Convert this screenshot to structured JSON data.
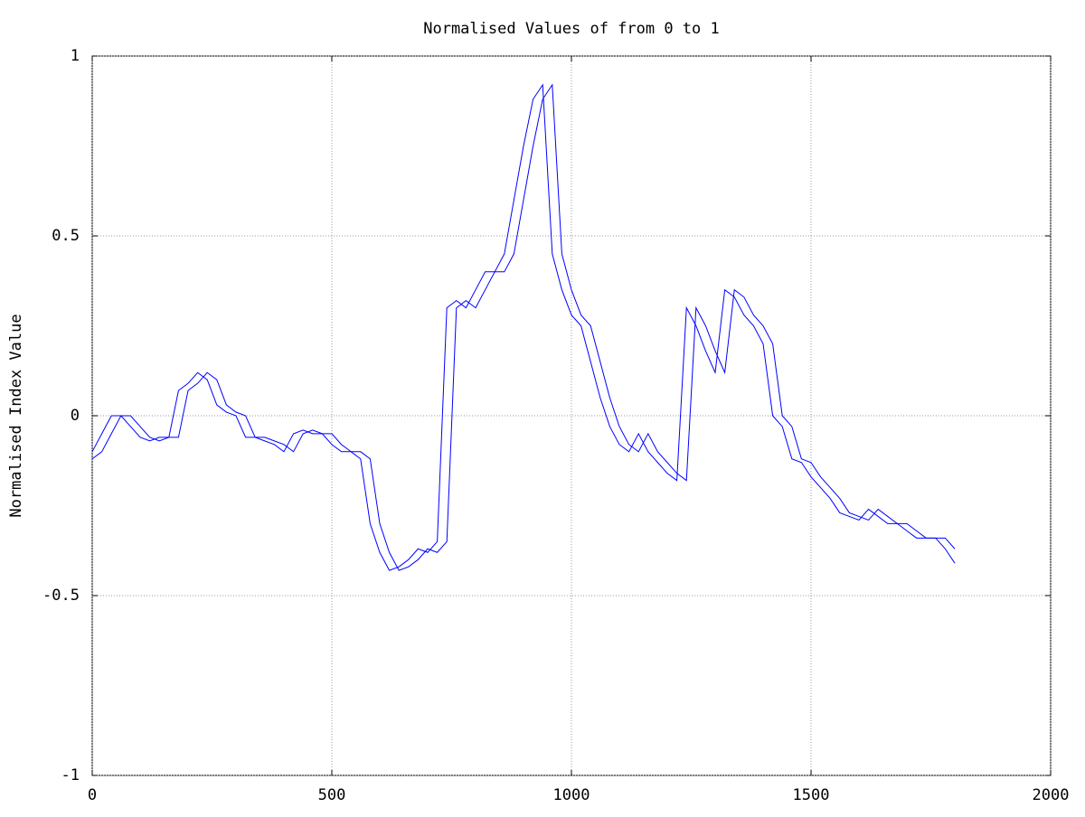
{
  "chart_data": {
    "type": "line",
    "title": "Normalised Values of from 0 to 1",
    "y_label": "Normalised Index Value",
    "x": [
      0,
      20,
      40,
      60,
      80,
      100,
      120,
      140,
      160,
      180,
      200,
      220,
      240,
      260,
      280,
      300,
      320,
      340,
      360,
      380,
      400,
      420,
      440,
      460,
      480,
      500,
      520,
      540,
      560,
      580,
      600,
      620,
      640,
      660,
      680,
      700,
      720,
      740,
      760,
      780,
      800,
      820,
      840,
      860,
      880,
      900,
      920,
      940,
      960,
      980,
      1000,
      1020,
      1040,
      1060,
      1080,
      1100,
      1120,
      1140,
      1160,
      1180,
      1200,
      1220,
      1240,
      1260,
      1280,
      1300,
      1320,
      1340,
      1360,
      1380,
      1400,
      1420,
      1440,
      1460,
      1480,
      1500,
      1520,
      1540,
      1560,
      1580,
      1600,
      1620,
      1640,
      1660,
      1680,
      1700,
      1720,
      1740,
      1760,
      1780,
      1800
    ],
    "series": [
      {
        "color": "#0000ff",
        "values": [
          -0.1,
          -0.05,
          0.0,
          0.0,
          -0.03,
          -0.06,
          -0.07,
          -0.06,
          -0.06,
          0.07,
          0.09,
          0.12,
          0.1,
          0.03,
          0.01,
          0.0,
          -0.06,
          -0.06,
          -0.07,
          -0.08,
          -0.1,
          -0.05,
          -0.04,
          -0.05,
          -0.05,
          -0.08,
          -0.1,
          -0.1,
          -0.12,
          -0.3,
          -0.38,
          -0.43,
          -0.42,
          -0.4,
          -0.37,
          -0.38,
          -0.35,
          0.3,
          0.32,
          0.3,
          0.35,
          0.4,
          0.4,
          0.45,
          0.6,
          0.75,
          0.88,
          0.92,
          0.45,
          0.35,
          0.28,
          0.25,
          0.15,
          0.05,
          -0.03,
          -0.08,
          -0.1,
          -0.05,
          -0.1,
          -0.13,
          -0.16,
          -0.18,
          0.3,
          0.25,
          0.18,
          0.12,
          0.35,
          0.33,
          0.28,
          0.25,
          0.2,
          0.0,
          -0.03,
          -0.12,
          -0.13,
          -0.17,
          -0.2,
          -0.23,
          -0.27,
          -0.28,
          -0.29,
          -0.26,
          -0.28,
          -0.3,
          -0.3,
          -0.32,
          -0.34,
          -0.34,
          -0.34,
          -0.37,
          -0.41
        ]
      },
      {
        "color": "#0000ff",
        "values": [
          -0.12,
          -0.1,
          -0.05,
          0.0,
          0.0,
          -0.03,
          -0.06,
          -0.07,
          -0.06,
          -0.06,
          0.07,
          0.09,
          0.12,
          0.1,
          0.03,
          0.01,
          0.0,
          -0.06,
          -0.06,
          -0.07,
          -0.08,
          -0.1,
          -0.05,
          -0.04,
          -0.05,
          -0.05,
          -0.08,
          -0.1,
          -0.1,
          -0.12,
          -0.3,
          -0.38,
          -0.43,
          -0.42,
          -0.4,
          -0.37,
          -0.38,
          -0.35,
          0.3,
          0.32,
          0.3,
          0.35,
          0.4,
          0.4,
          0.45,
          0.6,
          0.75,
          0.88,
          0.92,
          0.45,
          0.35,
          0.28,
          0.25,
          0.15,
          0.05,
          -0.03,
          -0.08,
          -0.1,
          -0.05,
          -0.1,
          -0.13,
          -0.16,
          -0.18,
          0.3,
          0.25,
          0.18,
          0.12,
          0.35,
          0.33,
          0.28,
          0.25,
          0.2,
          0.0,
          -0.03,
          -0.12,
          -0.13,
          -0.17,
          -0.2,
          -0.23,
          -0.27,
          -0.28,
          -0.29,
          -0.26,
          -0.28,
          -0.3,
          -0.3,
          -0.32,
          -0.34,
          -0.34,
          -0.34,
          -0.37
        ]
      }
    ],
    "xlim": [
      0,
      2000
    ],
    "xticks": [
      0,
      500,
      1000,
      1500,
      2000
    ],
    "ylim": [
      -1,
      1
    ],
    "yticks": [
      -1,
      -0.5,
      0,
      0.5,
      1
    ],
    "grid": true
  }
}
